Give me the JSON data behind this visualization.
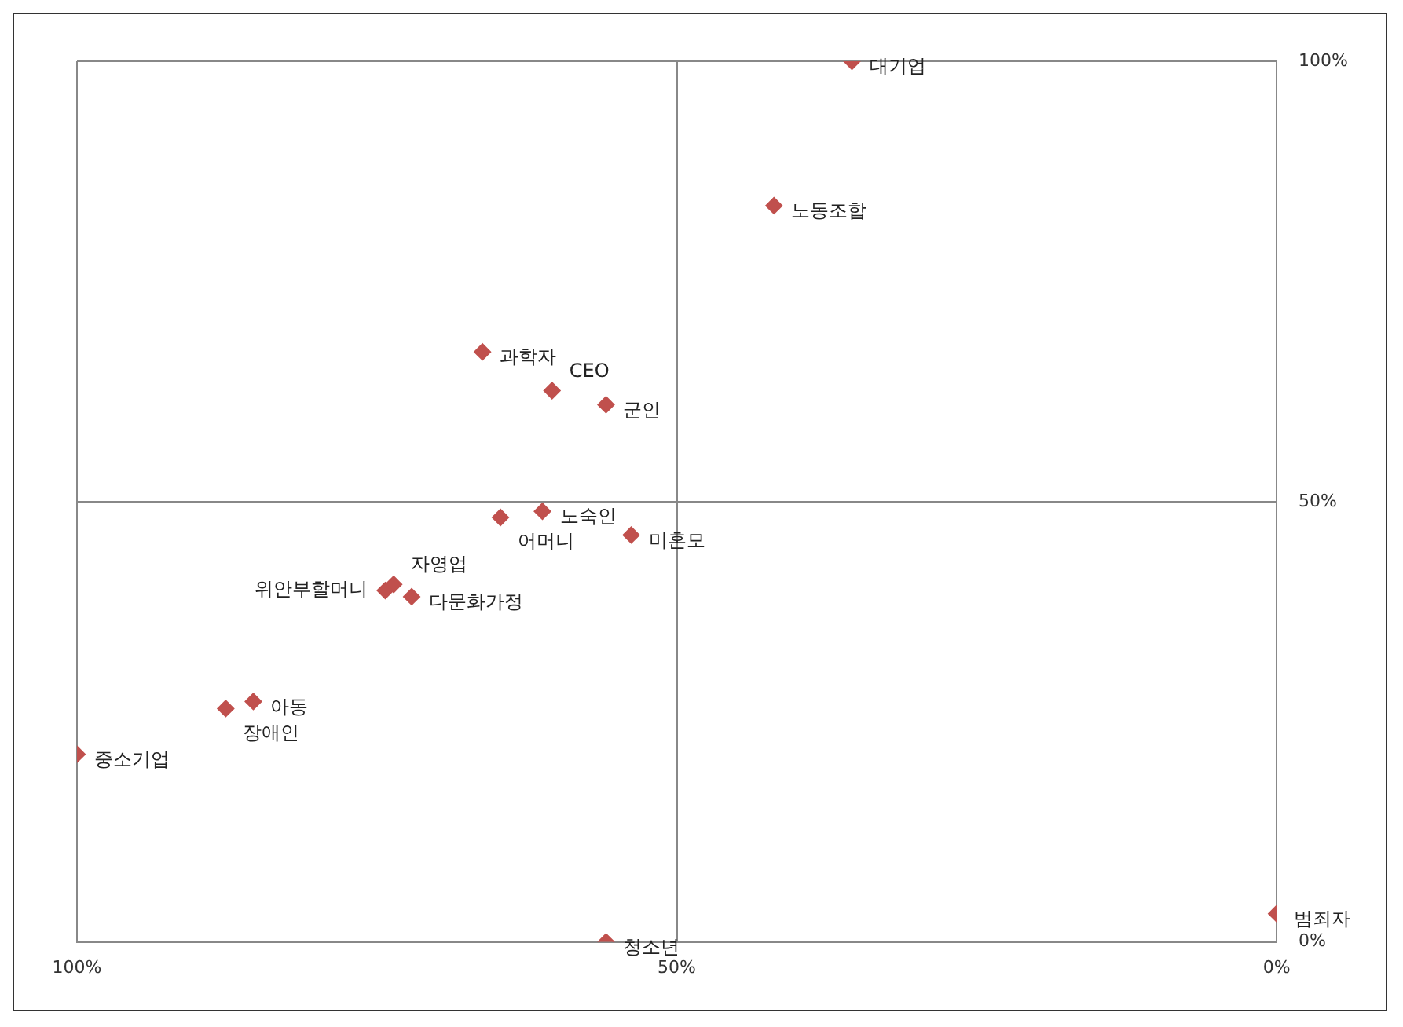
{
  "chart_data": {
    "type": "scatter",
    "x": [
      35.4,
      41.9,
      66.2,
      60.4,
      55.9,
      61.2,
      64.7,
      53.8,
      74.3,
      73.6,
      72.1,
      85.3,
      87.6,
      100,
      0,
      55.9
    ],
    "values": [
      100,
      83.6,
      67.0,
      62.6,
      61.0,
      48.9,
      48.2,
      46.2,
      39.9,
      40.6,
      39.2,
      27.3,
      26.5,
      21.3,
      3.2,
      0
    ],
    "color": "#c0504d",
    "marker": "diamond",
    "annotations": [
      {
        "text": "대기업",
        "x": 35.4,
        "y": 100
      },
      {
        "text": "노동조합",
        "x": 41.9,
        "y": 83.6
      },
      {
        "text": "과학자",
        "x": 66.2,
        "y": 67.0
      },
      {
        "text": "CEO",
        "x": 60.4,
        "y": 62.6
      },
      {
        "text": "군인",
        "x": 55.9,
        "y": 61.0
      },
      {
        "text": "노숙인",
        "x": 61.2,
        "y": 48.9
      },
      {
        "text": "어머니",
        "x": 64.7,
        "y": 48.2
      },
      {
        "text": "미혼모",
        "x": 53.8,
        "y": 46.2
      },
      {
        "text": "위안부할머니",
        "x": 74.3,
        "y": 39.9
      },
      {
        "text": "자영업",
        "x": 73.6,
        "y": 40.6
      },
      {
        "text": "다문화가정",
        "x": 72.1,
        "y": 39.2
      },
      {
        "text": "아동",
        "x": 85.3,
        "y": 27.3
      },
      {
        "text": "장애인",
        "x": 87.6,
        "y": 26.5
      },
      {
        "text": "중소기업",
        "x": 100,
        "y": 21.3
      },
      {
        "text": "범죄자",
        "x": 0,
        "y": 3.2
      },
      {
        "text": "청소년",
        "x": 55.9,
        "y": 0
      }
    ],
    "xlim": [
      100,
      0
    ],
    "ylim": [
      0,
      100
    ],
    "xticks": [
      {
        "value": 100,
        "label": "100%"
      },
      {
        "value": 50,
        "label": "50%"
      },
      {
        "value": 0,
        "label": "0%"
      }
    ],
    "yticks": [
      {
        "value": 0,
        "label": "0%"
      },
      {
        "value": 50,
        "label": "50%"
      },
      {
        "value": 100,
        "label": "100%"
      }
    ],
    "grid": true,
    "legend": false
  }
}
